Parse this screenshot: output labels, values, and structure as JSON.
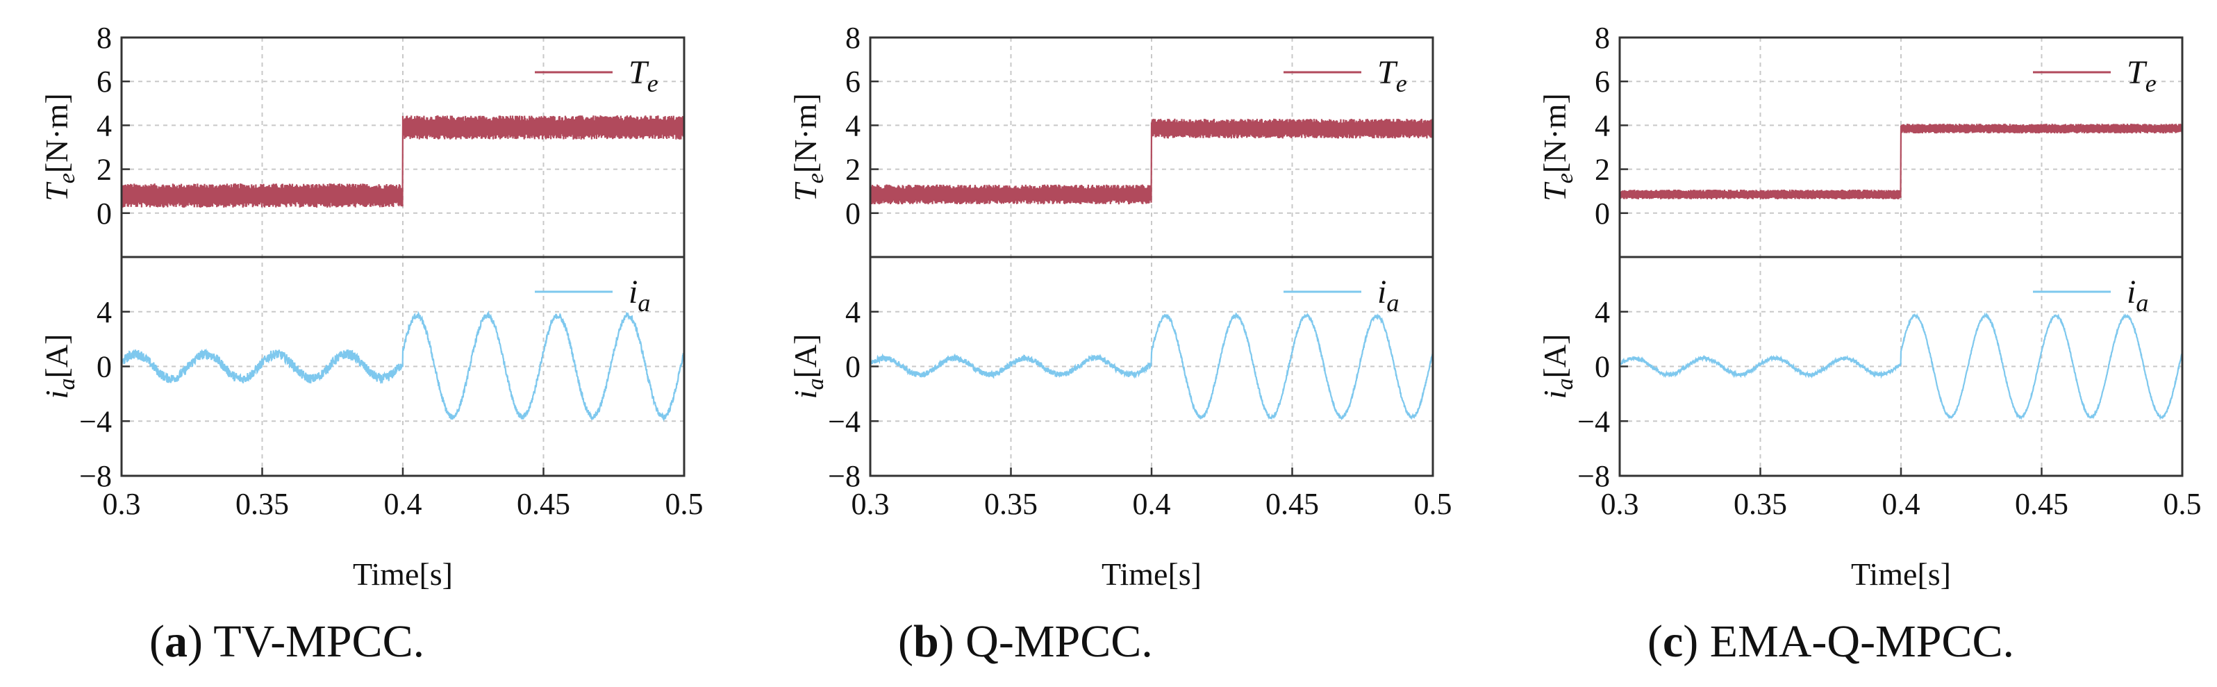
{
  "colors": {
    "torque": "#b14a5c",
    "current": "#7ec8ee"
  },
  "chart_data": [
    {
      "type": "line",
      "panel": "a",
      "caption": {
        "label": "a",
        "text": ") TV-MPCC."
      },
      "xlabel": "Time[s]",
      "xlim": [
        0.3,
        0.5
      ],
      "xticks": [
        "0.3",
        "0.35",
        "0.4",
        "0.45",
        "0.5"
      ],
      "top": {
        "ylabel_main": "T",
        "ylabel_sub": "e",
        "ylabel_unit": "[N·m]",
        "ylim": [
          -2,
          8
        ],
        "yticks": [
          "0",
          "2",
          "4",
          "6",
          "8"
        ],
        "legend": {
          "main": "T",
          "sub": "e",
          "position": "top-right"
        },
        "series": {
          "name": "Te",
          "step_time": 0.4,
          "before": 0.8,
          "after": 3.9,
          "ripple": 0.55
        }
      },
      "bottom": {
        "ylabel_main": "i",
        "ylabel_sub": "a",
        "ylabel_unit": "[A]",
        "ylim": [
          -8,
          8
        ],
        "yticks": [
          "−8",
          "−4",
          "0",
          "4"
        ],
        "legend": {
          "main": "i",
          "sub": "a",
          "position": "top-right"
        },
        "series": {
          "name": "ia",
          "step_time": 0.4,
          "amp_before": 0.9,
          "amp_after": 3.7,
          "freq_hz": 40,
          "noise": 0.35
        }
      }
    },
    {
      "type": "line",
      "panel": "b",
      "caption": {
        "label": "b",
        "text": ") Q-MPCC."
      },
      "xlabel": "Time[s]",
      "xlim": [
        0.3,
        0.5
      ],
      "xticks": [
        "0.3",
        "0.35",
        "0.4",
        "0.45",
        "0.5"
      ],
      "top": {
        "ylabel_main": "T",
        "ylabel_sub": "e",
        "ylabel_unit": "[N·m]",
        "ylim": [
          -2,
          8
        ],
        "yticks": [
          "0",
          "2",
          "4",
          "6",
          "8"
        ],
        "legend": {
          "main": "T",
          "sub": "e",
          "position": "top-right"
        },
        "series": {
          "name": "Te",
          "step_time": 0.4,
          "before": 0.85,
          "after": 3.85,
          "ripple": 0.45
        }
      },
      "bottom": {
        "ylabel_main": "i",
        "ylabel_sub": "a",
        "ylabel_unit": "[A]",
        "ylim": [
          -8,
          8
        ],
        "yticks": [
          "−8",
          "−4",
          "0",
          "4"
        ],
        "legend": {
          "main": "i",
          "sub": "a",
          "position": "top-right"
        },
        "series": {
          "name": "ia",
          "step_time": 0.4,
          "amp_before": 0.6,
          "amp_after": 3.7,
          "freq_hz": 40,
          "noise": 0.2
        }
      }
    },
    {
      "type": "line",
      "panel": "c",
      "caption": {
        "label": "c",
        "text": ") EMA-Q-MPCC."
      },
      "xlabel": "Time[s]",
      "xlim": [
        0.3,
        0.5
      ],
      "xticks": [
        "0.3",
        "0.35",
        "0.4",
        "0.45",
        "0.5"
      ],
      "top": {
        "ylabel_main": "T",
        "ylabel_sub": "e",
        "ylabel_unit": "[N·m]",
        "ylim": [
          -2,
          8
        ],
        "yticks": [
          "0",
          "2",
          "4",
          "6",
          "8"
        ],
        "legend": {
          "main": "T",
          "sub": "e",
          "position": "top-right"
        },
        "series": {
          "name": "Te",
          "step_time": 0.4,
          "before": 0.85,
          "after": 3.85,
          "ripple": 0.22
        }
      },
      "bottom": {
        "ylabel_main": "i",
        "ylabel_sub": "a",
        "ylabel_unit": "[A]",
        "ylim": [
          -8,
          8
        ],
        "yticks": [
          "−8",
          "−4",
          "0",
          "4"
        ],
        "legend": {
          "main": "i",
          "sub": "a",
          "position": "top-right"
        },
        "series": {
          "name": "ia",
          "step_time": 0.4,
          "amp_before": 0.6,
          "amp_after": 3.7,
          "freq_hz": 40,
          "noise": 0.12
        }
      }
    }
  ]
}
